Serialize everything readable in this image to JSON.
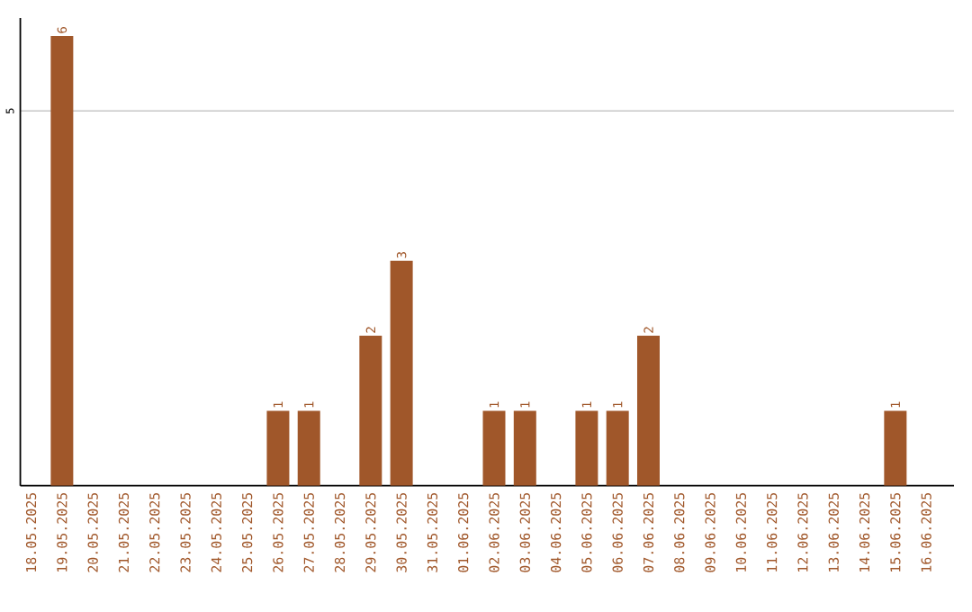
{
  "chart_data": {
    "type": "bar",
    "categories": [
      "18.05.2025",
      "19.05.2025",
      "20.05.2025",
      "21.05.2025",
      "22.05.2025",
      "23.05.2025",
      "24.05.2025",
      "25.05.2025",
      "26.05.2025",
      "27.05.2025",
      "28.05.2025",
      "29.05.2025",
      "30.05.2025",
      "31.05.2025",
      "01.06.2025",
      "02.06.2025",
      "03.06.2025",
      "04.06.2025",
      "05.06.2025",
      "06.06.2025",
      "07.06.2025",
      "08.06.2025",
      "09.06.2025",
      "10.06.2025",
      "11.06.2025",
      "12.06.2025",
      "13.06.2025",
      "14.06.2025",
      "15.06.2025",
      "16.06.2025"
    ],
    "values": [
      0,
      6,
      0,
      0,
      0,
      0,
      0,
      0,
      1,
      1,
      0,
      2,
      3,
      0,
      0,
      1,
      1,
      0,
      1,
      1,
      2,
      0,
      0,
      0,
      0,
      0,
      0,
      0,
      1,
      0
    ],
    "value_labels": [
      null,
      "6",
      null,
      null,
      null,
      null,
      null,
      null,
      "1",
      "1",
      null,
      "2",
      "3",
      null,
      null,
      "1",
      "1",
      null,
      "1",
      "1",
      "2",
      null,
      null,
      null,
      null,
      null,
      null,
      null,
      "1",
      null
    ],
    "color": "#a0572a",
    "ylim": [
      0,
      6.24
    ],
    "yticks": [
      5
    ],
    "grid": "y"
  }
}
